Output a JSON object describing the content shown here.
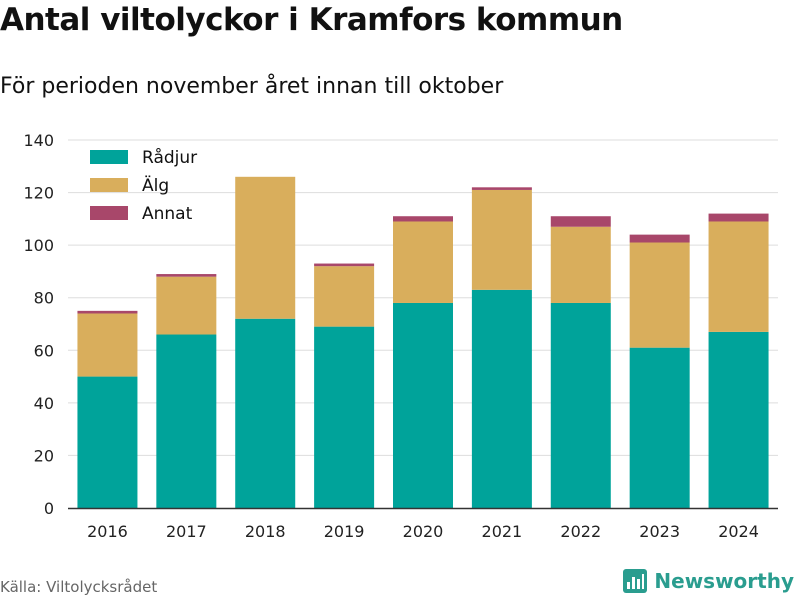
{
  "title": "Antal viltolyckor i Kramfors kommun",
  "subtitle": "För perioden november året innan till oktober",
  "source": "Källa: Viltolycksrådet",
  "brand": "Newsworthy",
  "colors": {
    "Rådjur": "#00a39a",
    "Älg": "#d9ae5c",
    "Annat": "#a8476a"
  },
  "chart_data": {
    "type": "bar",
    "stacked": true,
    "categories": [
      "2016",
      "2017",
      "2018",
      "2019",
      "2020",
      "2021",
      "2022",
      "2023",
      "2024"
    ],
    "series": [
      {
        "name": "Rådjur",
        "values": [
          50,
          66,
          72,
          69,
          78,
          83,
          78,
          61,
          67
        ]
      },
      {
        "name": "Älg",
        "values": [
          24,
          22,
          54,
          23,
          31,
          38,
          29,
          40,
          42
        ]
      },
      {
        "name": "Annat",
        "values": [
          1,
          1,
          0,
          1,
          2,
          1,
          4,
          3,
          3
        ]
      }
    ],
    "yticks": [
      0,
      20,
      40,
      60,
      80,
      100,
      120,
      140
    ],
    "ylim": [
      0,
      140
    ],
    "grid": true,
    "legend": "top-left"
  }
}
